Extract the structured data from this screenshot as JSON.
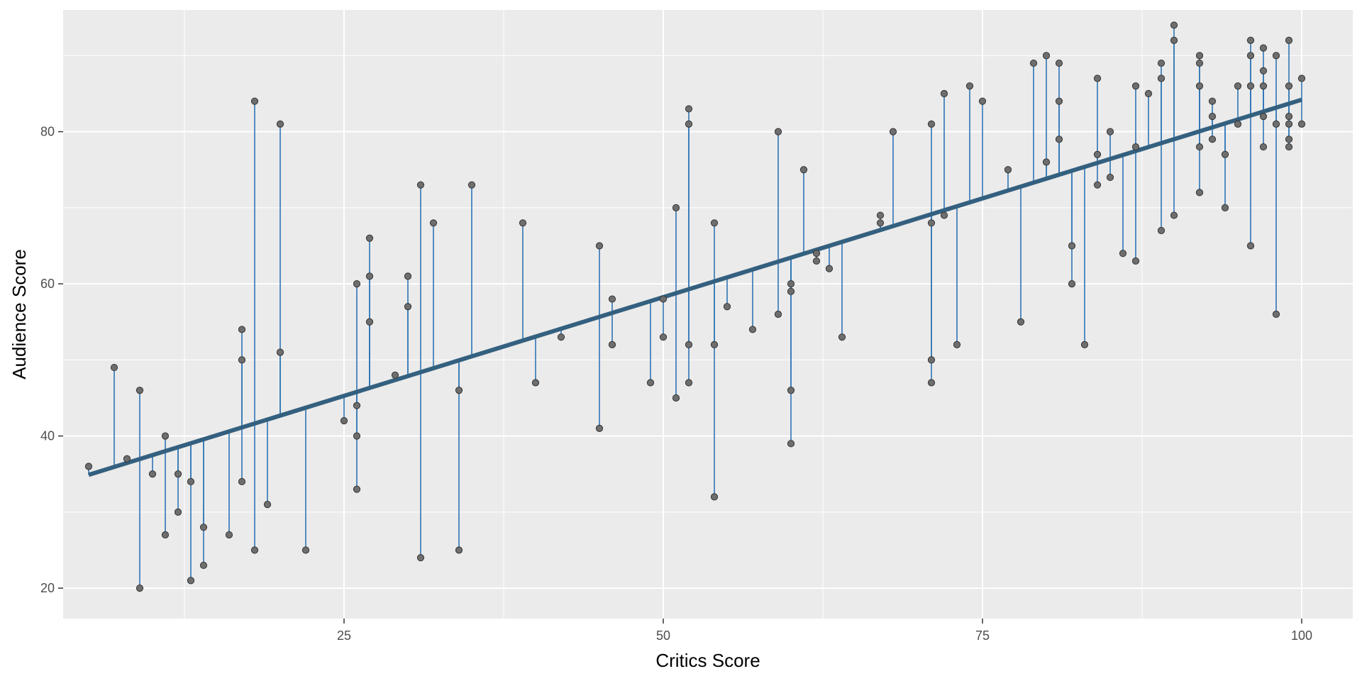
{
  "chart_data": {
    "type": "scatter",
    "xlabel": "Critics Score",
    "ylabel": "Audience Score",
    "xlim": [
      3,
      104
    ],
    "ylim": [
      16,
      96
    ],
    "x_ticks": [
      25,
      50,
      75,
      100
    ],
    "y_ticks": [
      20,
      40,
      60,
      80
    ],
    "x_tick_labels": [
      "25",
      "50",
      "75",
      "100"
    ],
    "y_tick_labels": [
      "20",
      "40",
      "60",
      "80"
    ],
    "grid": true,
    "fit_line": {
      "intercept": 32.3,
      "slope": 0.519
    },
    "colors": {
      "panel": "#ebebeb",
      "grid_major": "#ffffff",
      "point_fill": "#6e6e6e",
      "point_stroke": "#333333",
      "residual": "#2e75b6",
      "fit_line": "#34607f"
    },
    "points": [
      [
        5,
        36
      ],
      [
        7,
        49
      ],
      [
        8,
        37
      ],
      [
        9,
        20
      ],
      [
        9,
        46
      ],
      [
        10,
        35
      ],
      [
        11,
        27
      ],
      [
        11,
        40
      ],
      [
        12,
        30
      ],
      [
        12,
        35
      ],
      [
        13,
        21
      ],
      [
        13,
        34
      ],
      [
        14,
        23
      ],
      [
        14,
        28
      ],
      [
        16,
        27
      ],
      [
        17,
        34
      ],
      [
        17,
        50
      ],
      [
        17,
        54
      ],
      [
        18,
        25
      ],
      [
        18,
        84
      ],
      [
        19,
        31
      ],
      [
        20,
        51
      ],
      [
        20,
        81
      ],
      [
        22,
        25
      ],
      [
        25,
        42
      ],
      [
        26,
        33
      ],
      [
        26,
        40
      ],
      [
        26,
        44
      ],
      [
        26,
        60
      ],
      [
        27,
        55
      ],
      [
        27,
        61
      ],
      [
        27,
        66
      ],
      [
        29,
        48
      ],
      [
        30,
        57
      ],
      [
        30,
        61
      ],
      [
        31,
        24
      ],
      [
        31,
        73
      ],
      [
        32,
        68
      ],
      [
        34,
        25
      ],
      [
        34,
        46
      ],
      [
        35,
        73
      ],
      [
        39,
        68
      ],
      [
        40,
        47
      ],
      [
        42,
        53
      ],
      [
        45,
        41
      ],
      [
        45,
        65
      ],
      [
        46,
        52
      ],
      [
        46,
        58
      ],
      [
        49,
        47
      ],
      [
        50,
        53
      ],
      [
        50,
        58
      ],
      [
        51,
        45
      ],
      [
        51,
        70
      ],
      [
        52,
        47
      ],
      [
        52,
        52
      ],
      [
        52,
        81
      ],
      [
        52,
        83
      ],
      [
        54,
        32
      ],
      [
        54,
        52
      ],
      [
        54,
        68
      ],
      [
        55,
        57
      ],
      [
        57,
        54
      ],
      [
        59,
        56
      ],
      [
        59,
        80
      ],
      [
        60,
        39
      ],
      [
        60,
        46
      ],
      [
        60,
        59
      ],
      [
        60,
        60
      ],
      [
        61,
        75
      ],
      [
        62,
        63
      ],
      [
        62,
        64
      ],
      [
        63,
        62
      ],
      [
        64,
        53
      ],
      [
        67,
        68
      ],
      [
        67,
        69
      ],
      [
        68,
        80
      ],
      [
        71,
        47
      ],
      [
        71,
        50
      ],
      [
        71,
        68
      ],
      [
        71,
        81
      ],
      [
        72,
        69
      ],
      [
        72,
        85
      ],
      [
        73,
        52
      ],
      [
        74,
        86
      ],
      [
        75,
        84
      ],
      [
        77,
        75
      ],
      [
        78,
        55
      ],
      [
        79,
        89
      ],
      [
        80,
        76
      ],
      [
        80,
        90
      ],
      [
        81,
        79
      ],
      [
        81,
        84
      ],
      [
        81,
        89
      ],
      [
        82,
        60
      ],
      [
        82,
        65
      ],
      [
        83,
        52
      ],
      [
        84,
        73
      ],
      [
        84,
        77
      ],
      [
        84,
        87
      ],
      [
        85,
        74
      ],
      [
        85,
        80
      ],
      [
        86,
        64
      ],
      [
        87,
        63
      ],
      [
        87,
        78
      ],
      [
        87,
        86
      ],
      [
        88,
        85
      ],
      [
        89,
        67
      ],
      [
        89,
        87
      ],
      [
        89,
        89
      ],
      [
        90,
        69
      ],
      [
        90,
        92
      ],
      [
        90,
        94
      ],
      [
        92,
        72
      ],
      [
        92,
        78
      ],
      [
        92,
        86
      ],
      [
        92,
        89
      ],
      [
        92,
        90
      ],
      [
        93,
        79
      ],
      [
        93,
        82
      ],
      [
        93,
        84
      ],
      [
        94,
        70
      ],
      [
        94,
        77
      ],
      [
        95,
        81
      ],
      [
        95,
        86
      ],
      [
        96,
        65
      ],
      [
        96,
        86
      ],
      [
        96,
        90
      ],
      [
        96,
        92
      ],
      [
        97,
        78
      ],
      [
        97,
        82
      ],
      [
        97,
        86
      ],
      [
        97,
        88
      ],
      [
        97,
        91
      ],
      [
        98,
        56
      ],
      [
        98,
        81
      ],
      [
        98,
        90
      ],
      [
        99,
        78
      ],
      [
        99,
        79
      ],
      [
        99,
        81
      ],
      [
        99,
        82
      ],
      [
        99,
        86
      ],
      [
        99,
        92
      ],
      [
        100,
        81
      ],
      [
        100,
        87
      ]
    ]
  }
}
